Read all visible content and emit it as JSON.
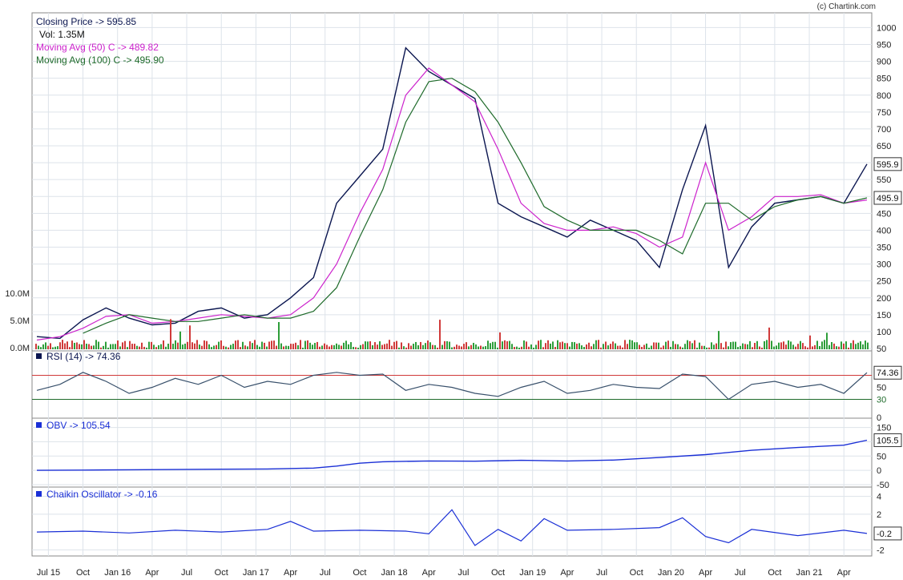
{
  "credit": "(c) Chartink.com",
  "x_axis_labels": [
    "Jul 15",
    "Oct",
    "Jan 16",
    "Apr",
    "Jul",
    "Oct",
    "Jan 17",
    "Apr",
    "Jul",
    "Oct",
    "Jan 18",
    "Apr",
    "Jul",
    "Oct",
    "Jan 19",
    "Apr",
    "Jul",
    "Oct",
    "Jan 20",
    "Apr",
    "Jul",
    "Oct",
    "Jan 21",
    "Apr"
  ],
  "colors": {
    "price": "#0b1650",
    "ma50": "#cc22cc",
    "ma100": "#1f6b2b",
    "vol_up": "#2e9e3a",
    "vol_down": "#d03a3a",
    "rsi": "#38506b",
    "rsi_hi": "#d03a3a",
    "rsi_lo": "#1f6b2b",
    "obv": "#1a2fd6",
    "chaikin": "#1a2fd6",
    "grid": "#dde3ea",
    "label_blue": "#0b1650"
  },
  "chart_data": [
    {
      "type": "line",
      "panel": "price",
      "legend": {
        "close": "Closing Price -> 595.85",
        "vol": "Vol: 1.35M",
        "ma50": "Moving Avg (50) C -> 489.82",
        "ma100": "Moving Avg (100) C -> 495.90"
      },
      "y_ticks": [
        50,
        100,
        150,
        200,
        250,
        300,
        350,
        400,
        450,
        500,
        550,
        600,
        650,
        700,
        750,
        800,
        850,
        900,
        950,
        1000
      ],
      "ylim": [
        50,
        1020
      ],
      "last_price_label": "595.9",
      "last_ma_label": "495.9",
      "t": [
        0,
        2,
        4,
        6,
        8,
        10,
        12,
        14,
        16,
        18,
        20,
        22,
        24,
        26,
        28,
        30,
        32,
        34,
        36,
        38,
        40,
        42,
        44,
        46,
        48,
        50,
        52,
        54,
        56,
        58,
        60,
        62,
        64,
        66,
        68,
        70,
        72
      ],
      "series": [
        {
          "name": "Closing Price",
          "values": [
            85,
            80,
            135,
            170,
            140,
            120,
            125,
            160,
            170,
            140,
            150,
            200,
            260,
            480,
            560,
            640,
            940,
            870,
            830,
            790,
            480,
            440,
            410,
            380,
            430,
            400,
            370,
            290,
            520,
            710,
            290,
            410,
            480,
            490,
            500,
            480,
            595.85
          ]
        },
        {
          "name": "Moving Avg (50) C",
          "values": [
            75,
            85,
            110,
            145,
            150,
            125,
            130,
            140,
            150,
            145,
            140,
            150,
            200,
            300,
            450,
            580,
            800,
            880,
            830,
            780,
            640,
            480,
            420,
            400,
            400,
            410,
            390,
            350,
            380,
            600,
            400,
            440,
            500,
            500,
            505,
            480,
            489.82
          ]
        },
        {
          "name": "Moving Avg (100) C",
          "values": [
            null,
            null,
            95,
            125,
            150,
            140,
            130,
            130,
            140,
            150,
            140,
            140,
            160,
            230,
            380,
            520,
            720,
            840,
            850,
            810,
            720,
            600,
            470,
            430,
            400,
            400,
            400,
            370,
            330,
            480,
            480,
            430,
            470,
            490,
            500,
            480,
            495.9
          ]
        }
      ]
    },
    {
      "type": "bar",
      "panel": "volume",
      "y_ticks": [
        "10.0M",
        "5.0M",
        "0.0M"
      ]
    },
    {
      "type": "line",
      "panel": "rsi",
      "legend": "RSI (14) -> 74.36",
      "y_ticks": [
        0,
        30,
        50
      ],
      "overbought": 70,
      "oversold": 30,
      "last_label": "74.36",
      "t": [
        0,
        2,
        4,
        6,
        8,
        10,
        12,
        14,
        16,
        18,
        20,
        22,
        24,
        26,
        28,
        30,
        32,
        34,
        36,
        38,
        40,
        42,
        44,
        46,
        48,
        50,
        52,
        54,
        56,
        58,
        60,
        62,
        64,
        66,
        68,
        70,
        72
      ],
      "values": [
        45,
        55,
        75,
        60,
        40,
        50,
        65,
        55,
        70,
        50,
        60,
        55,
        70,
        75,
        70,
        72,
        45,
        55,
        50,
        40,
        35,
        50,
        60,
        40,
        45,
        55,
        50,
        48,
        72,
        68,
        30,
        55,
        60,
        50,
        55,
        40,
        74.36
      ]
    },
    {
      "type": "line",
      "panel": "obv",
      "legend": "OBV -> 105.54",
      "y_ticks": [
        150,
        100,
        50,
        0,
        -50
      ],
      "last_label": "105.5",
      "t": [
        0,
        4,
        8,
        12,
        16,
        20,
        24,
        26,
        28,
        30,
        34,
        38,
        42,
        46,
        50,
        54,
        58,
        62,
        66,
        70,
        72
      ],
      "values": [
        0,
        1,
        2,
        3,
        4,
        5,
        8,
        15,
        25,
        30,
        33,
        32,
        35,
        33,
        36,
        45,
        55,
        70,
        80,
        88,
        105.54
      ]
    },
    {
      "type": "line",
      "panel": "chaikin",
      "legend": "Chaikin Oscillator -> -0.16",
      "y_ticks": [
        4,
        2,
        -2
      ],
      "last_label": "-0.2",
      "t": [
        0,
        4,
        8,
        12,
        16,
        20,
        22,
        24,
        28,
        32,
        34,
        36,
        38,
        40,
        42,
        44,
        46,
        50,
        54,
        56,
        58,
        60,
        62,
        66,
        70,
        72
      ],
      "values": [
        0,
        0.1,
        -0.1,
        0.2,
        0,
        0.3,
        1.2,
        0.1,
        0.2,
        0.1,
        -0.2,
        2.5,
        -1.5,
        0.3,
        -1,
        1.5,
        0.2,
        0.3,
        0.5,
        1.6,
        -0.5,
        -1.2,
        0.3,
        -0.4,
        0.2,
        -0.16
      ]
    }
  ]
}
